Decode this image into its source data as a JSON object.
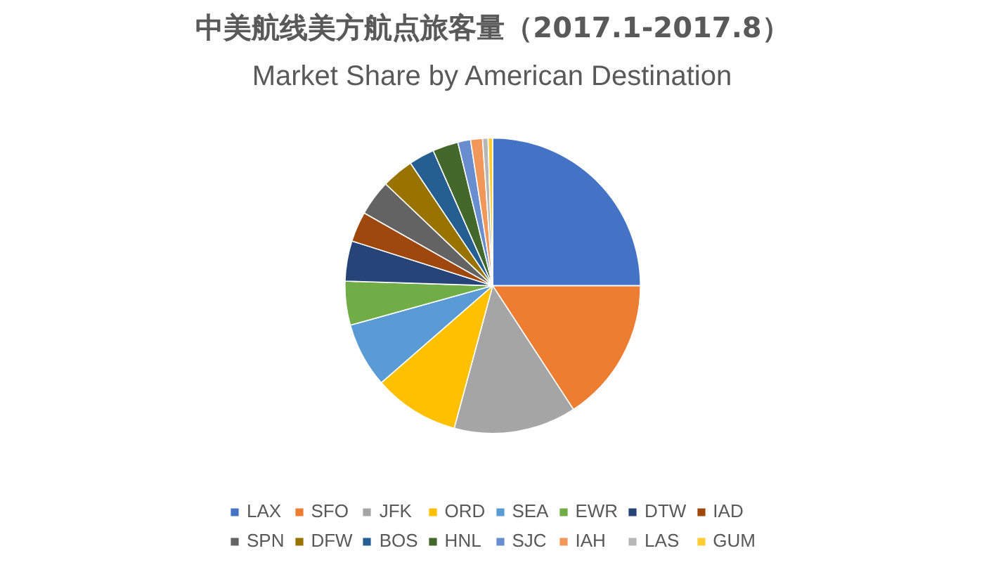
{
  "chart_data": {
    "type": "pie",
    "title": "中美航线美方航点旅客量（2017.1-2017.8）",
    "subtitle": "Market Share by American Destination",
    "categories": [
      "LAX",
      "SFO",
      "JFK",
      "ORD",
      "SEA",
      "EWR",
      "DTW",
      "IAD",
      "SPN",
      "DFW",
      "BOS",
      "HNL",
      "SJC",
      "IAH",
      "LAS",
      "GUM"
    ],
    "values": [
      25,
      15.8,
      13.4,
      9.4,
      7.1,
      4.8,
      4.4,
      3.3,
      3.9,
      3.5,
      2.8,
      2.8,
      1.4,
      1.3,
      0.6,
      0.5
    ],
    "colors": [
      "#4472c4",
      "#ed7d31",
      "#a5a5a5",
      "#ffc000",
      "#5b9bd5",
      "#70ad47",
      "#264478",
      "#9e480e",
      "#636363",
      "#997300",
      "#255e91",
      "#43682b",
      "#698ed0",
      "#f1975a",
      "#b7b7b7",
      "#ffcd33"
    ],
    "legend": "bottom"
  }
}
